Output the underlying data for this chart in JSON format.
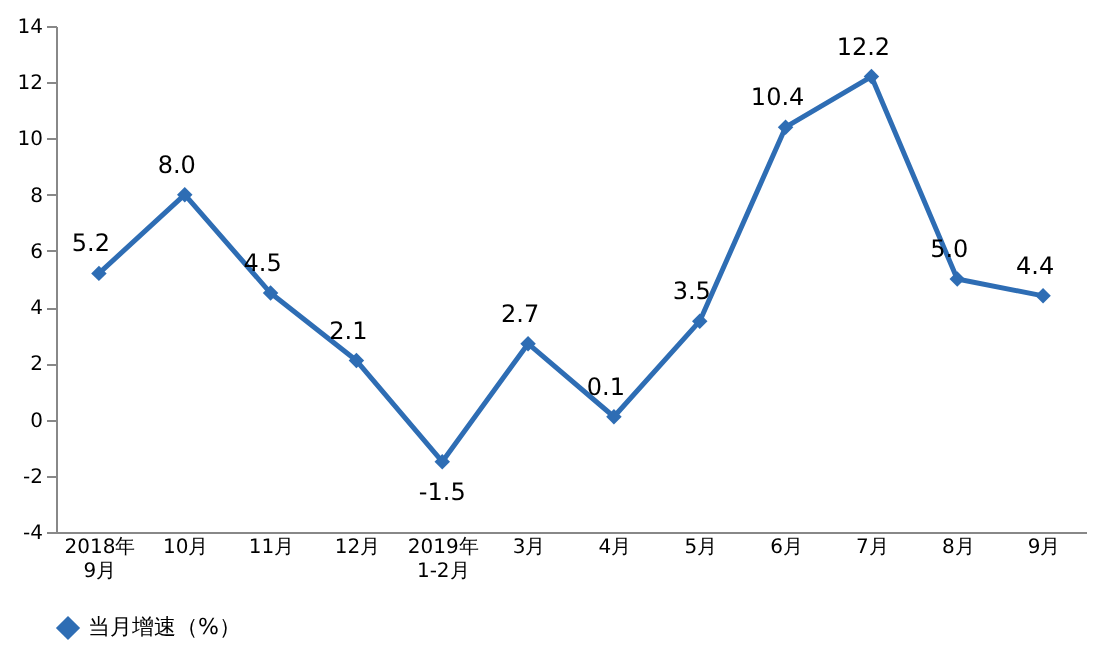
{
  "chart_data": {
    "type": "line",
    "categories": [
      "2018年\n9月",
      "10月",
      "11月",
      "12月",
      "2019年\n1-2月",
      "3月",
      "4月",
      "5月",
      "6月",
      "7月",
      "8月",
      "9月"
    ],
    "series": [
      {
        "name": "当月增速（%）",
        "color": "#2e6db4",
        "values": [
          5.2,
          8.0,
          4.5,
          2.1,
          -1.5,
          2.7,
          0.1,
          3.5,
          10.4,
          12.2,
          5.0,
          4.4
        ],
        "value_labels": [
          "5.2",
          "8.0",
          "4.5",
          "2.1",
          "-1.5",
          "2.7",
          "0.1",
          "3.5",
          "10.4",
          "12.2",
          "5.0",
          "4.4"
        ]
      }
    ],
    "ylim": [
      -4,
      14
    ],
    "yticks": [
      -4,
      -2,
      0,
      2,
      4,
      6,
      8,
      10,
      12,
      14
    ],
    "grid": false,
    "legend": "bottom",
    "marker": "diamond",
    "line_style": "solid"
  }
}
